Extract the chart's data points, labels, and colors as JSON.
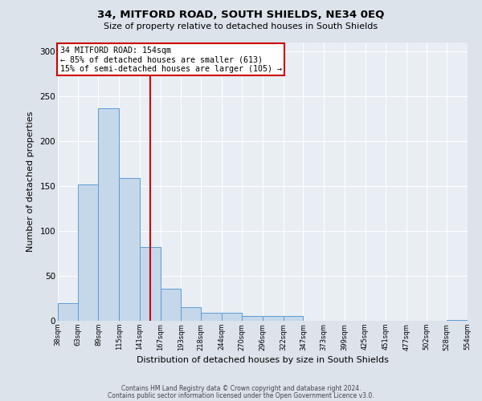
{
  "title": "34, MITFORD ROAD, SOUTH SHIELDS, NE34 0EQ",
  "subtitle": "Size of property relative to detached houses in South Shields",
  "xlabel": "Distribution of detached houses by size in South Shields",
  "ylabel": "Number of detached properties",
  "footnote1": "Contains HM Land Registry data © Crown copyright and database right 2024.",
  "footnote2": "Contains public sector information licensed under the Open Government Licence v3.0.",
  "bar_edges": [
    38,
    63,
    89,
    115,
    141,
    167,
    193,
    218,
    244,
    270,
    296,
    322,
    347,
    373,
    399,
    425,
    451,
    477,
    502,
    528,
    554
  ],
  "bar_heights": [
    20,
    152,
    236,
    159,
    82,
    36,
    15,
    9,
    9,
    5,
    5,
    5,
    0,
    0,
    0,
    0,
    0,
    0,
    0,
    1
  ],
  "bar_color": "#c5d8ea",
  "bar_edge_color": "#5b9bd5",
  "vline_x": 154,
  "vline_color": "#cc0000",
  "annotation_title": "34 MITFORD ROAD: 154sqm",
  "annotation_line1": "← 85% of detached houses are smaller (613)",
  "annotation_line2": "15% of semi-detached houses are larger (105) →",
  "annotation_box_color": "#cc0000",
  "xlim_left": 38,
  "xlim_right": 554,
  "ylim_top": 310,
  "bg_color": "#dce3eb",
  "plot_bg_color": "#e8eef4",
  "grid_color": "#ffffff",
  "yticks": [
    0,
    50,
    100,
    150,
    200,
    250,
    300
  ]
}
